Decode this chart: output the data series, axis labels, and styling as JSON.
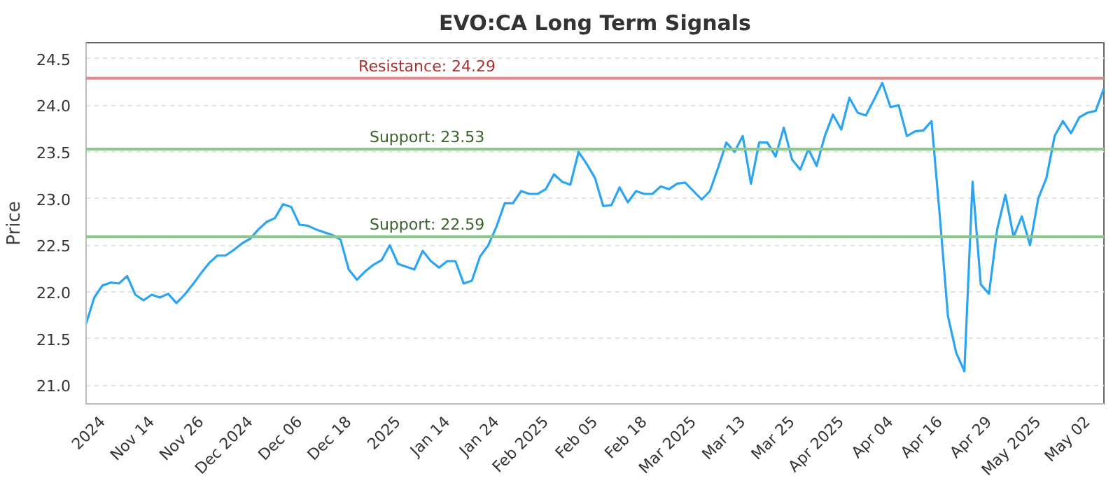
{
  "chart_data": {
    "type": "line",
    "title": "EVO:CA Long Term Signals",
    "ylabel": "Price",
    "categories": [
      null,
      null,
      "2024",
      null,
      null,
      null,
      null,
      null,
      "Nov 14",
      null,
      null,
      null,
      null,
      null,
      "Nov 26",
      null,
      null,
      null,
      null,
      null,
      "Dec 2024",
      null,
      null,
      null,
      null,
      null,
      "Dec 06",
      null,
      null,
      null,
      null,
      null,
      "Dec 18",
      null,
      null,
      null,
      null,
      null,
      "2025",
      null,
      null,
      null,
      null,
      null,
      "Jan 14",
      null,
      null,
      null,
      null,
      null,
      "Jan 24",
      null,
      null,
      null,
      null,
      null,
      "Feb 2025",
      null,
      null,
      null,
      null,
      null,
      "Feb 05",
      null,
      null,
      null,
      null,
      null,
      "Feb 18",
      null,
      null,
      null,
      null,
      null,
      "Mar 2025",
      null,
      null,
      null,
      null,
      null,
      "Mar 13",
      null,
      null,
      null,
      null,
      null,
      "Mar 25",
      null,
      null,
      null,
      null,
      null,
      "Apr 2025",
      null,
      null,
      null,
      null,
      null,
      "Apr 04",
      null,
      null,
      null,
      null,
      null,
      "Apr 16",
      null,
      null,
      null,
      null,
      null,
      "Apr 29",
      null,
      null,
      null,
      null,
      null,
      "May 2025",
      null,
      null,
      null,
      null,
      null,
      "May 02",
      null,
      null
    ],
    "series": [
      {
        "color": "#2aa4f4",
        "values": [
          21.66,
          21.94,
          22.07,
          22.1,
          22.09,
          22.17,
          21.97,
          21.91,
          21.97,
          21.94,
          21.98,
          21.88,
          21.97,
          22.08,
          22.2,
          22.31,
          22.39,
          22.39,
          22.45,
          22.52,
          22.57,
          22.67,
          22.75,
          22.79,
          22.94,
          22.91,
          22.72,
          22.71,
          22.67,
          22.64,
          22.61,
          22.56,
          22.24,
          22.13,
          22.22,
          22.29,
          22.34,
          22.5,
          22.3,
          22.27,
          22.24,
          22.44,
          22.33,
          22.26,
          22.33,
          22.33,
          22.09,
          22.12,
          22.38,
          22.5,
          22.7,
          22.95,
          22.95,
          23.08,
          23.05,
          23.05,
          23.1,
          23.26,
          23.18,
          23.15,
          23.5,
          23.37,
          23.22,
          22.92,
          22.93,
          23.12,
          22.96,
          23.08,
          23.05,
          23.05,
          23.13,
          23.1,
          23.16,
          23.17,
          23.08,
          22.99,
          23.08,
          23.33,
          23.6,
          23.5,
          23.67,
          23.16,
          23.6,
          23.6,
          23.45,
          23.76,
          23.42,
          23.31,
          23.53,
          23.35,
          23.67,
          23.9,
          23.74,
          24.08,
          23.92,
          23.89,
          24.06,
          24.24,
          23.98,
          24.0,
          23.67,
          23.72,
          23.73,
          23.83,
          22.82,
          21.74,
          21.35,
          21.15,
          23.18,
          22.08,
          21.98,
          22.67,
          23.04,
          22.59,
          22.81,
          22.5,
          23.0,
          23.22,
          23.67,
          23.83,
          23.7,
          23.87,
          23.92,
          23.94,
          24.18
        ]
      }
    ],
    "ylim": [
      20.8,
      24.67
    ],
    "yticks": [
      {
        "value": 21.0,
        "label": "21.0"
      },
      {
        "value": 21.5,
        "label": "21.5"
      },
      {
        "value": 22.0,
        "label": "22.0"
      },
      {
        "value": 22.5,
        "label": "22.5"
      },
      {
        "value": 23.0,
        "label": "23.0"
      },
      {
        "value": 23.5,
        "label": "23.5"
      },
      {
        "value": 24.0,
        "label": "24.0"
      },
      {
        "value": 24.5,
        "label": "24.5"
      }
    ],
    "grid": "y",
    "marker": "none",
    "line_style": "solid",
    "ref_lines": [
      {
        "axis": "y",
        "value": 24.29,
        "label": "Resistance: 24.29",
        "color": "#e08a8a"
      },
      {
        "axis": "y",
        "value": 23.53,
        "label": "Support: 23.53",
        "color": "#8cc88c"
      },
      {
        "axis": "y",
        "value": 22.59,
        "label": "Support: 22.59",
        "color": "#8cc88c"
      }
    ]
  }
}
